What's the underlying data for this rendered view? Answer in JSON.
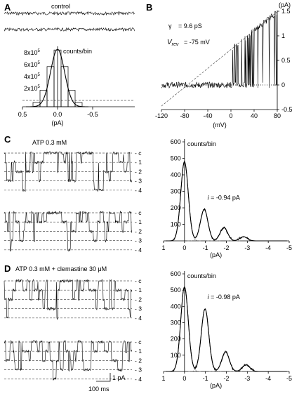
{
  "panelA": {
    "letter": "A",
    "title": "control",
    "y_unit": "counts/bin",
    "x_unit": "(pA)",
    "y_ticks": [
      {
        "mant": "8x10",
        "exp": "5",
        "val": 800000
      },
      {
        "mant": "6x10",
        "exp": "5",
        "val": 600000
      },
      {
        "mant": "4x10",
        "exp": "5",
        "val": 400000
      },
      {
        "mant": "2x10",
        "exp": "5",
        "val": 200000
      }
    ],
    "x_ticks": [
      "0.5",
      "0.0",
      "-0.5"
    ]
  },
  "panelB": {
    "letter": "B",
    "y_unit": "(pA)",
    "x_unit": "(mV)",
    "gamma_sym": "γ",
    "gamma_val": "= 9.6 pS",
    "vrev_sym": "V",
    "vrev_sub": "rev",
    "vrev_val": "= -75 mV",
    "x_ticks": [
      "-120",
      "-80",
      "-40",
      "0",
      "40",
      "80"
    ],
    "y_ticks": [
      "1.5",
      "1",
      "0.5",
      "0",
      "-0.5"
    ],
    "xlim": [
      -120,
      80
    ],
    "ylim": [
      -0.5,
      1.5
    ]
  },
  "panelC": {
    "letter": "C",
    "title": "ATP 0.3 mM",
    "levels": [
      "c",
      "1",
      "2",
      "3",
      "4"
    ],
    "hist": {
      "y_unit": "counts/bin",
      "y_ticks": [
        "600",
        "500",
        "400",
        "300",
        "200",
        "100"
      ],
      "x_ticks": [
        "1",
        "0",
        "-1",
        "-2",
        "-3",
        "-4",
        "-5"
      ],
      "x_unit": "(pA)",
      "annot_sym": "i",
      "annot_val": "= -0.94 pA"
    }
  },
  "panelD": {
    "letter": "D",
    "title": "ATP 0.3 mM + clemastine 30 μM",
    "levels": [
      "c",
      "1",
      "2",
      "3",
      "4"
    ],
    "scale_y": "1 pA",
    "scale_x": "100 ms",
    "hist": {
      "y_unit": "counts/bin",
      "y_ticks": [
        "600",
        "500",
        "400",
        "300",
        "200",
        "100"
      ],
      "x_ticks": [
        "1",
        "0",
        "-1",
        "-2",
        "-3",
        "-4",
        "-5"
      ],
      "x_unit": "(pA)",
      "annot_sym": "i",
      "annot_val": "= -0.98 pA"
    }
  },
  "chart_data": [
    {
      "type": "bar",
      "title": "control",
      "xlabel": "(pA)",
      "ylabel": "counts/bin",
      "categories": [
        "0.3",
        "0.2",
        "0.1",
        "0.0",
        "-0.1",
        "-0.2",
        "-0.3"
      ],
      "values": [
        60000,
        230000,
        560000,
        790000,
        560000,
        230000,
        60000
      ],
      "xlim": [
        0.5,
        -0.5
      ],
      "ylim": [
        0,
        900000
      ]
    },
    {
      "type": "line",
      "xlabel": "(mV)",
      "ylabel": "(pA)",
      "series": [
        {
          "x": [
            -120,
            80
          ],
          "y": [
            -0.43,
            1.49
          ]
        }
      ],
      "xlim": [
        -120,
        80
      ],
      "ylim": [
        -0.5,
        1.5
      ]
    },
    {
      "type": "line",
      "ylabel": "counts/bin",
      "xlabel": "(pA)",
      "xlim": [
        1,
        -5
      ],
      "ylim": [
        0,
        600
      ],
      "peaks": {
        "x": [
          0,
          -0.94,
          -1.88,
          -2.82
        ],
        "y": [
          480,
          190,
          80,
          25
        ]
      }
    },
    {
      "type": "line",
      "ylabel": "counts/bin",
      "xlabel": "(pA)",
      "xlim": [
        1,
        -5
      ],
      "ylim": [
        0,
        600
      ],
      "peaks": {
        "x": [
          0,
          -0.98,
          -1.96,
          -2.94
        ],
        "y": [
          520,
          385,
          120,
          40
        ]
      }
    }
  ]
}
